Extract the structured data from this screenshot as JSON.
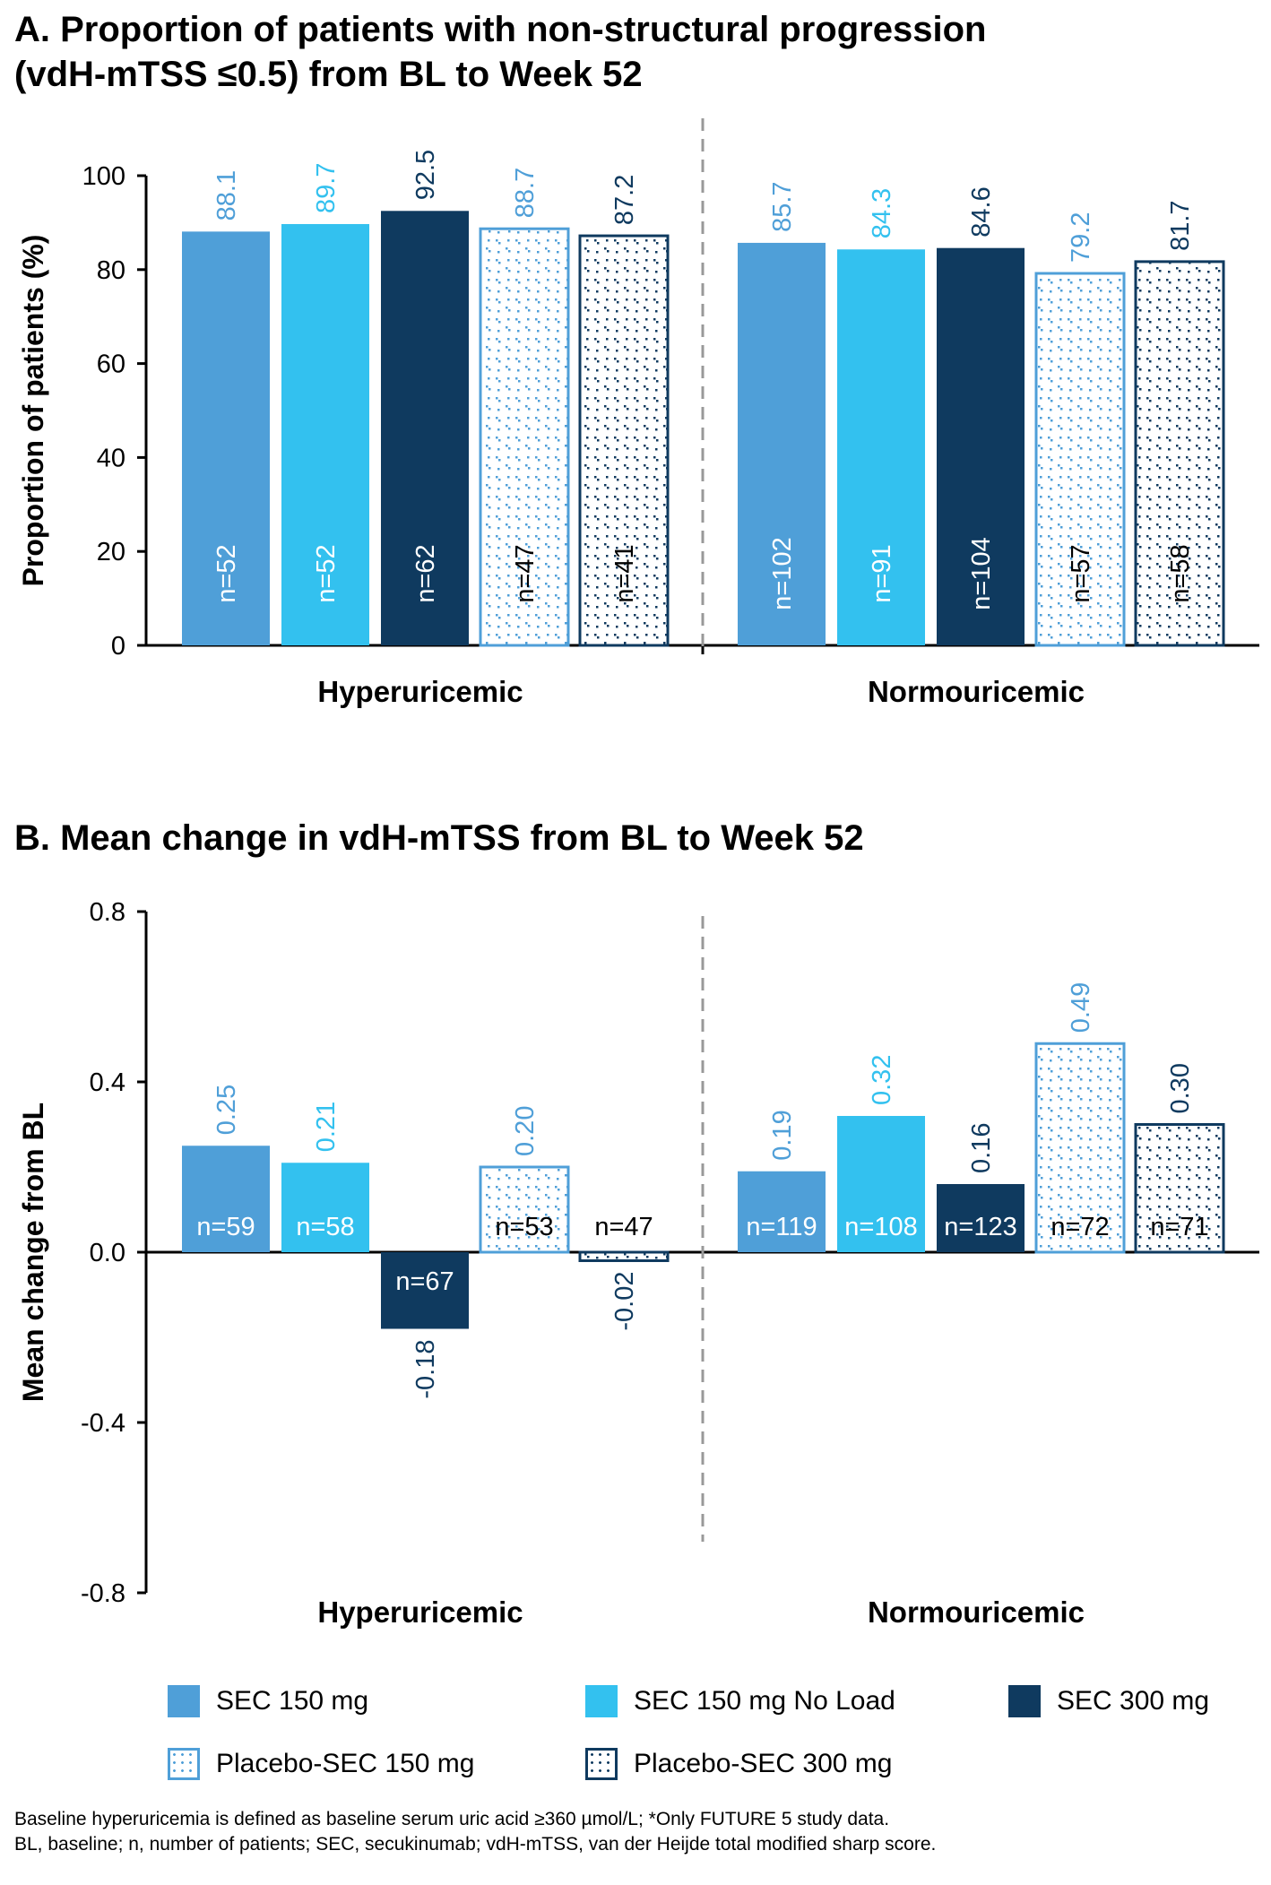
{
  "panel_a_title_line1": "A. Proportion of patients with non-structural progression",
  "panel_a_title_line2": "(vdH-mTSS ≤0.5) from BL to Week 52",
  "panel_b_title": "B. Mean change in vdH-mTSS from BL to Week 52",
  "colors": {
    "sec150": "#4f9fd8",
    "sec150_noload": "#33c1ef",
    "sec300": "#0f3a5f",
    "pbo150": "#4f9fd8",
    "pbo300": "#0f3a5f"
  },
  "legend": [
    {
      "label": "SEC 150 mg",
      "key": "sec150",
      "style": "solid"
    },
    {
      "label": "SEC 150 mg No Load",
      "key": "sec150_noload",
      "style": "solid"
    },
    {
      "label": "SEC 300 mg",
      "key": "sec300",
      "style": "solid"
    },
    {
      "label": "Placebo-SEC 150 mg",
      "key": "pbo150",
      "style": "pattern"
    },
    {
      "label": "Placebo-SEC 300 mg",
      "key": "pbo300",
      "style": "pattern"
    }
  ],
  "footnotes": [
    "Baseline hyperuricemia is defined as baseline serum uric acid ≥360 µmol/L; *Only FUTURE 5 study data.",
    "BL, baseline; n, number of patients; SEC, secukinumab; vdH-mTSS, van der Heijde total modified sharp score."
  ],
  "chart_data": [
    {
      "type": "bar",
      "title": "A. Proportion of patients with non-structural progression (vdH-mTSS ≤0.5) from BL to Week 52",
      "ylabel": "Proportion of patients (%)",
      "xlabel": "",
      "ylim": [
        0,
        100
      ],
      "yticks": [
        "0",
        "20",
        "40",
        "60",
        "80",
        "100"
      ],
      "categories": [
        "Hyperuricemic",
        "Normouricemic"
      ],
      "series": [
        {
          "name": "SEC 150 mg",
          "key": "sec150",
          "values": [
            88.1,
            85.7
          ],
          "labels": [
            "88.1",
            "85.7"
          ],
          "n": [
            "n=52",
            "n=102"
          ]
        },
        {
          "name": "SEC 150 mg No Load",
          "key": "sec150_noload",
          "values": [
            89.7,
            84.3
          ],
          "labels": [
            "89.7",
            "84.3"
          ],
          "n": [
            "n=52",
            "n=91"
          ]
        },
        {
          "name": "SEC 300 mg",
          "key": "sec300",
          "values": [
            92.5,
            84.6
          ],
          "labels": [
            "92.5",
            "84.6"
          ],
          "n": [
            "n=62",
            "n=104"
          ]
        },
        {
          "name": "Placebo-SEC 150 mg",
          "key": "pbo150",
          "values": [
            88.7,
            79.2
          ],
          "labels": [
            "88.7",
            "79.2"
          ],
          "n": [
            "n=47",
            "n=57"
          ]
        },
        {
          "name": "Placebo-SEC 300 mg",
          "key": "pbo300",
          "values": [
            87.2,
            81.7
          ],
          "labels": [
            "87.2",
            "81.7"
          ],
          "n": [
            "n=41",
            "n=58"
          ]
        }
      ],
      "grid": false,
      "legend": "bottom"
    },
    {
      "type": "bar",
      "title": "B. Mean change in vdH-mTSS from BL to Week 52",
      "ylabel": "Mean change from BL",
      "xlabel": "",
      "ylim": [
        -0.8,
        0.8
      ],
      "yticks": [
        "-0.8",
        "-0.4",
        "0.0",
        "0.4",
        "0.8"
      ],
      "categories": [
        "Hyperuricemic",
        "Normouricemic"
      ],
      "series": [
        {
          "name": "SEC 150 mg",
          "key": "sec150",
          "values": [
            0.25,
            0.19
          ],
          "labels": [
            "0.25",
            "0.19"
          ],
          "n": [
            "n=59",
            "n=119"
          ]
        },
        {
          "name": "SEC 150 mg No Load",
          "key": "sec150_noload",
          "values": [
            0.21,
            0.32
          ],
          "labels": [
            "0.21",
            "0.32"
          ],
          "n": [
            "n=58",
            "n=108"
          ]
        },
        {
          "name": "SEC 300 mg",
          "key": "sec300",
          "values": [
            -0.18,
            0.16
          ],
          "labels": [
            "-0.18",
            "0.16"
          ],
          "n": [
            "n=67",
            "n=123"
          ]
        },
        {
          "name": "Placebo-SEC 150 mg",
          "key": "pbo150",
          "values": [
            0.2,
            0.49
          ],
          "labels": [
            "0.20",
            "0.49"
          ],
          "n": [
            "n=53",
            "n=72"
          ]
        },
        {
          "name": "Placebo-SEC 300 mg",
          "key": "pbo300",
          "values": [
            -0.02,
            0.3
          ],
          "labels": [
            "-0.02",
            "0.30"
          ],
          "n": [
            "n=47",
            "n=71"
          ]
        }
      ],
      "grid": false,
      "legend": "bottom"
    }
  ]
}
